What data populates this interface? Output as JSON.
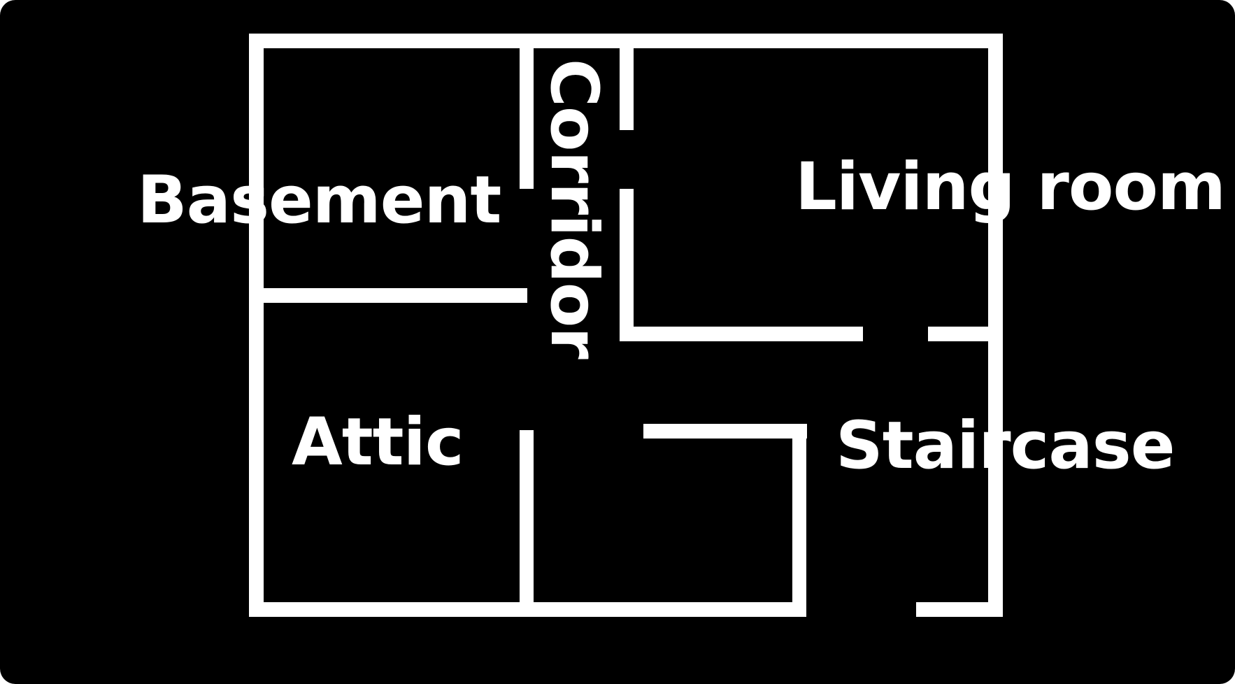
{
  "colors": {
    "background": "#000000",
    "walls": "#ffffff",
    "text": "#ffffff"
  },
  "rooms": {
    "basement": "Basement",
    "corridor": "Corridor",
    "living_room": "Living room",
    "attic": "Attic",
    "staircase": "Staircase"
  }
}
